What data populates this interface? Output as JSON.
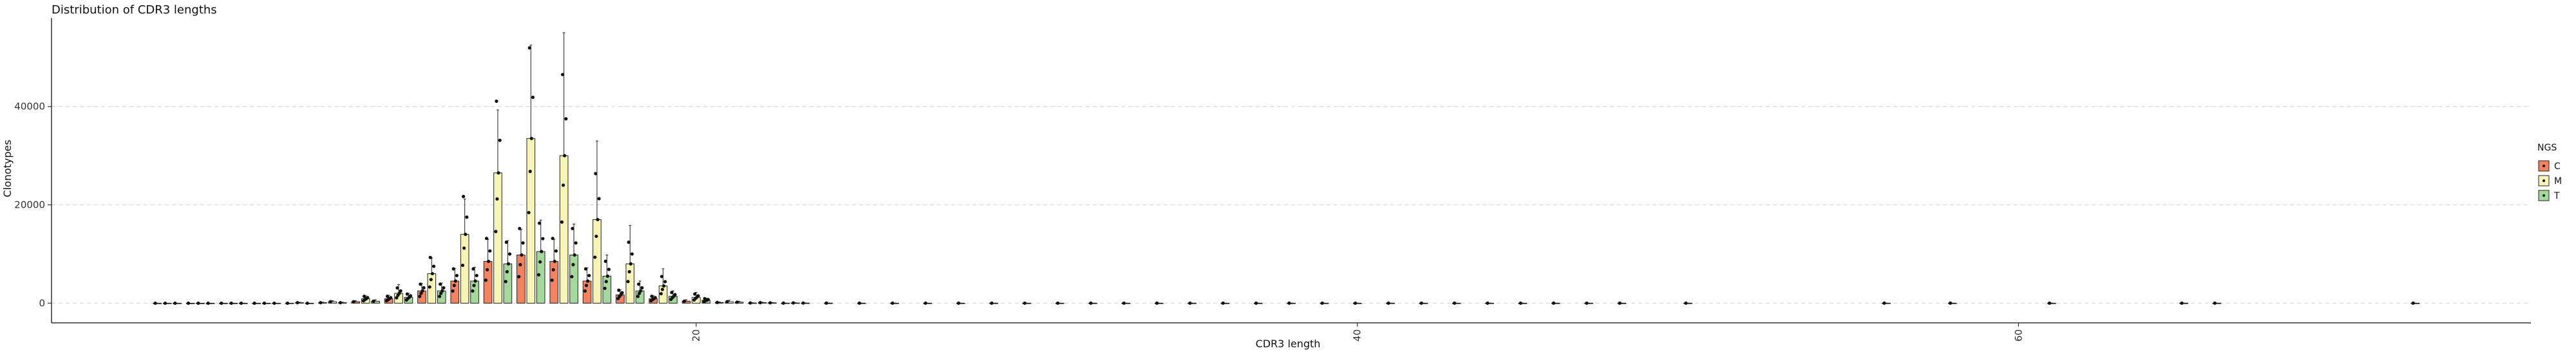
{
  "chart_data": {
    "type": "bar",
    "title": "Distribution of CDR3 lengths",
    "xlabel": "CDR3 length",
    "ylabel": "Clonotypes",
    "xlim": [
      0.5,
      75.5
    ],
    "ylim": [
      -4000,
      58000
    ],
    "x_ticks": [
      20,
      40,
      60
    ],
    "y_ticks": [
      0,
      20000,
      40000
    ],
    "grid": "horizontal-dashed",
    "legend": {
      "title": "NGS",
      "placement": "right",
      "entries": [
        "C",
        "M",
        "T"
      ]
    },
    "colors": {
      "C": "#f4825f",
      "M": "#f7f5b6",
      "T": "#a3d99a"
    },
    "series": [
      {
        "name": "C",
        "x": [
          4,
          5,
          6,
          7,
          8,
          9,
          10,
          11,
          12,
          13,
          14,
          15,
          16,
          17,
          18,
          19,
          20,
          21,
          22,
          23
        ],
        "values": [
          0,
          0,
          0,
          0,
          0,
          100,
          300,
          900,
          2500,
          4500,
          8500,
          9800,
          8500,
          4500,
          1700,
          900,
          400,
          150,
          50,
          20
        ],
        "errors": [
          0,
          0,
          0,
          0,
          0,
          100,
          200,
          700,
          1500,
          2600,
          4500,
          5200,
          4500,
          2700,
          1000,
          600,
          300,
          100,
          50,
          20
        ]
      },
      {
        "name": "M",
        "x": [
          4,
          5,
          6,
          7,
          8,
          9,
          10,
          11,
          12,
          13,
          14,
          15,
          16,
          17,
          18,
          19,
          20,
          21,
          22,
          23,
          24,
          25,
          26,
          27,
          28,
          29,
          30,
          31,
          32,
          33,
          34,
          35,
          36,
          37,
          38,
          39,
          40,
          41,
          42,
          43,
          44,
          45,
          46,
          47,
          48,
          50,
          56,
          58,
          61,
          65,
          66,
          72
        ],
        "values": [
          0,
          0,
          0,
          0,
          100,
          300,
          900,
          2000,
          6000,
          14000,
          26500,
          33500,
          30000,
          17000,
          8000,
          3500,
          1200,
          300,
          100,
          50,
          20,
          10,
          10,
          10,
          10,
          10,
          10,
          10,
          10,
          10,
          10,
          10,
          10,
          10,
          10,
          10,
          10,
          10,
          10,
          10,
          10,
          10,
          10,
          10,
          10,
          10,
          10,
          10,
          10,
          10,
          10,
          10
        ],
        "errors": [
          0,
          0,
          0,
          0,
          100,
          200,
          600,
          1800,
          3200,
          7200,
          12800,
          19000,
          25000,
          16000,
          7800,
          3500,
          1000,
          300,
          100,
          50,
          20,
          10,
          10,
          10,
          10,
          10,
          10,
          10,
          10,
          10,
          10,
          10,
          10,
          10,
          10,
          10,
          10,
          10,
          10,
          10,
          10,
          10,
          10,
          10,
          10,
          10,
          10,
          10,
          10,
          10,
          10,
          10
        ]
      },
      {
        "name": "T",
        "x": [
          4,
          5,
          6,
          7,
          8,
          9,
          10,
          11,
          12,
          13,
          14,
          15,
          16,
          17,
          18,
          19,
          20,
          21,
          22,
          23
        ],
        "values": [
          0,
          0,
          0,
          0,
          0,
          100,
          400,
          1200,
          2500,
          4500,
          8000,
          10500,
          9800,
          5500,
          2500,
          1400,
          600,
          200,
          80,
          30
        ],
        "errors": [
          0,
          0,
          0,
          0,
          0,
          100,
          300,
          800,
          1600,
          2800,
          4700,
          6400,
          6300,
          4300,
          2000,
          1100,
          400,
          200,
          60,
          30
        ]
      }
    ]
  }
}
